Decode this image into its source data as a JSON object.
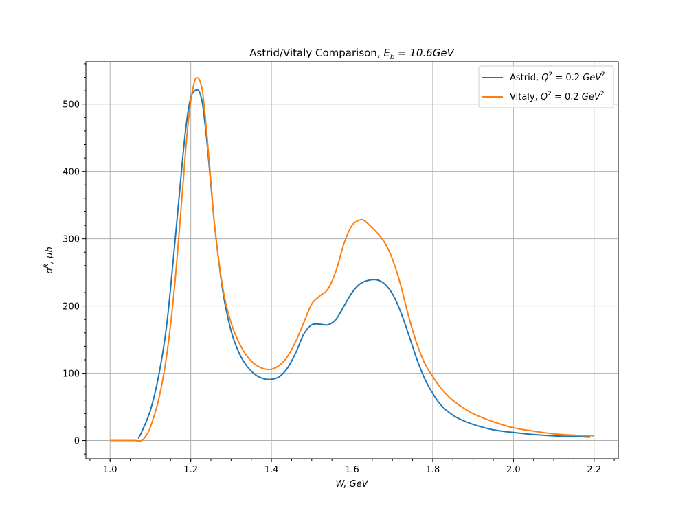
{
  "chart_data": {
    "type": "line",
    "title": "Astrid/Vitaly Comparison, E_b = 10.6GeV",
    "title_parts": {
      "prefix": "Astrid/Vitaly Comparison, ",
      "math_main": "E",
      "math_sub": "b",
      "math_rest": " = 10.6GeV"
    },
    "xlabel": "W, GeV",
    "ylabel": "σ^R, μb",
    "ylabel_parts": {
      "sigma": "σ",
      "sup": "R",
      "rest": ", μb"
    },
    "xlim": [
      0.94,
      2.26
    ],
    "ylim": [
      -27,
      563
    ],
    "xticks": [
      "1.0",
      "1.2",
      "1.4",
      "1.6",
      "1.8",
      "2.0",
      "2.2"
    ],
    "yticks": [
      "0",
      "100",
      "200",
      "300",
      "400",
      "500"
    ],
    "grid": true,
    "legend_position": "top-right",
    "series": [
      {
        "name": "Astrid, Q^2 = 0.2 GeV^2",
        "legend_parts": {
          "prefix": "Astrid, ",
          "q": "Q",
          "sup": "2",
          "mid": " = 0.2 ",
          "unit": "GeV",
          "unit_sup": "2"
        },
        "color": "#1f77b4",
        "x": [
          1.07,
          1.08,
          1.1,
          1.12,
          1.14,
          1.16,
          1.18,
          1.19,
          1.2,
          1.21,
          1.215,
          1.22,
          1.225,
          1.23,
          1.24,
          1.25,
          1.26,
          1.28,
          1.3,
          1.32,
          1.34,
          1.36,
          1.38,
          1.4,
          1.42,
          1.44,
          1.46,
          1.48,
          1.5,
          1.52,
          1.54,
          1.56,
          1.58,
          1.6,
          1.62,
          1.64,
          1.66,
          1.68,
          1.7,
          1.72,
          1.74,
          1.76,
          1.78,
          1.8,
          1.82,
          1.84,
          1.86,
          1.9,
          1.95,
          2.0,
          2.05,
          2.1,
          2.15,
          2.19
        ],
        "y": [
          3,
          15,
          45,
          95,
          170,
          290,
          420,
          475,
          510,
          520,
          521,
          520,
          512,
          497,
          445,
          380,
          315,
          220,
          163,
          130,
          110,
          98,
          92,
          91,
          95,
          108,
          130,
          158,
          172,
          173,
          172,
          180,
          200,
          220,
          233,
          238,
          239,
          233,
          218,
          192,
          158,
          122,
          92,
          70,
          53,
          42,
          34,
          24,
          16,
          12,
          9,
          7,
          6,
          5
        ]
      },
      {
        "name": "Vitaly, Q^2 = 0.2 GeV^2",
        "legend_parts": {
          "prefix": "Vitaly, ",
          "q": "Q",
          "sup": "2",
          "mid": " = 0.2 ",
          "unit": "GeV",
          "unit_sup": "2"
        },
        "color": "#ff7f0e",
        "x": [
          1.0,
          1.02,
          1.04,
          1.06,
          1.078,
          1.09,
          1.1,
          1.12,
          1.14,
          1.16,
          1.18,
          1.19,
          1.2,
          1.21,
          1.215,
          1.22,
          1.225,
          1.23,
          1.24,
          1.25,
          1.26,
          1.28,
          1.3,
          1.32,
          1.34,
          1.36,
          1.38,
          1.4,
          1.42,
          1.44,
          1.46,
          1.48,
          1.5,
          1.52,
          1.54,
          1.56,
          1.58,
          1.6,
          1.62,
          1.63,
          1.64,
          1.66,
          1.68,
          1.7,
          1.72,
          1.74,
          1.76,
          1.78,
          1.8,
          1.82,
          1.84,
          1.86,
          1.9,
          1.95,
          2.0,
          2.05,
          2.1,
          2.15,
          2.2
        ],
        "y": [
          0,
          0,
          0,
          0,
          0,
          8,
          20,
          60,
          125,
          230,
          375,
          450,
          505,
          535,
          539,
          538,
          530,
          515,
          455,
          385,
          315,
          225,
          175,
          145,
          125,
          113,
          107,
          106,
          112,
          125,
          147,
          175,
          203,
          215,
          225,
          252,
          293,
          320,
          328,
          327,
          322,
          310,
          295,
          270,
          232,
          185,
          145,
          115,
          95,
          78,
          65,
          55,
          40,
          28,
          19,
          14,
          10,
          8,
          7
        ]
      }
    ]
  }
}
